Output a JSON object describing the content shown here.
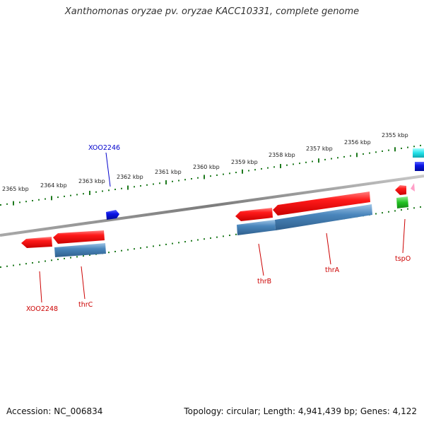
{
  "title": "Xanthomonas oryzae pv. oryzae KACC10331, complete genome",
  "accession": "Accession: NC_006834",
  "summary": "Topology: circular; Length: 4,941,439 bp; Genes: 4,122",
  "colors": {
    "backbone": "#8c8c8c",
    "tick": "#1e7a1e",
    "gene_forward": "#ff1a1a",
    "gene_reverse": "#4682b4",
    "label_red": "#cc0000",
    "label_blue": "#0000cc",
    "cyan": "#22e0e8",
    "blue": "#0a14e6",
    "green": "#22c022",
    "pink": "#ff9fc8"
  },
  "scale_labels": [
    "2365 kbp",
    "2364 kbp",
    "2363 kbp",
    "2362 kbp",
    "2361 kbp",
    "2360 kbp",
    "2359 kbp",
    "2358 kbp",
    "2357 kbp",
    "2356 kbp",
    "2355 kbp"
  ],
  "gene_labels": {
    "xoo2246": "XOO2246",
    "xoo2248": "XOO2248",
    "thrc": "thrC",
    "thrb": "thrB",
    "thra": "thrA",
    "tspo": "tspO"
  }
}
